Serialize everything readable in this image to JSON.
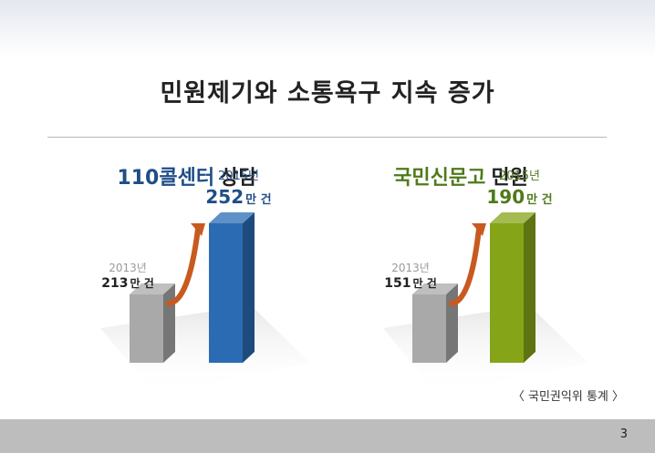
{
  "page": {
    "title": "민원제기와 소통욕구 지속 증가",
    "source": "〈 국민권익위 통계 〉",
    "page_number": "3"
  },
  "chart_data": [
    {
      "type": "bar",
      "title_part1": "110콜센터",
      "title_part2": "상담",
      "categories": [
        "2013년",
        "2015년"
      ],
      "values": [
        213,
        252
      ],
      "unit": "만 건",
      "ylim": [
        0,
        260
      ],
      "colors": [
        "#a9a9a9",
        "#2a6bb3"
      ],
      "accent": "#1f4e86"
    },
    {
      "type": "bar",
      "title_part1": "국민신문고",
      "title_part2": "민원",
      "categories": [
        "2013년",
        "2015년"
      ],
      "values": [
        151,
        190
      ],
      "unit": "만 건",
      "ylim": [
        0,
        260
      ],
      "colors": [
        "#a9a9a9",
        "#86a418"
      ],
      "accent": "#4f7a1a"
    }
  ]
}
